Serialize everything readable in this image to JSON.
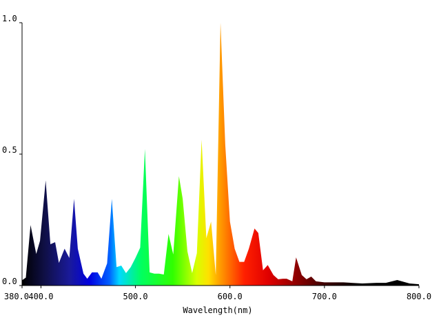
{
  "chart_data": {
    "type": "area",
    "xlabel": "Wavelength(nm)",
    "xlim": [
      380,
      800
    ],
    "ylim": [
      0,
      1
    ],
    "xticks": [
      {
        "value": 380,
        "label": "380.0"
      },
      {
        "value": 400,
        "label": "400.0"
      },
      {
        "value": 500,
        "label": "500.0"
      },
      {
        "value": 600,
        "label": "600.0"
      },
      {
        "value": 700,
        "label": "700.0"
      },
      {
        "value": 800,
        "label": "800.0"
      }
    ],
    "yticks": [
      {
        "value": 0,
        "label": "0.0"
      },
      0.5,
      {
        "value": 1,
        "label": "1.0"
      }
    ],
    "x": [
      380,
      384,
      389,
      395,
      399,
      405,
      410,
      415,
      419,
      425,
      430,
      435,
      439,
      445,
      449,
      454,
      460,
      464,
      470,
      475,
      480,
      485,
      490,
      495,
      500,
      505,
      510,
      515,
      520,
      525,
      530,
      535,
      540,
      546,
      550,
      555,
      560,
      565,
      570,
      575,
      580,
      585,
      590,
      595,
      600,
      605,
      610,
      615,
      620,
      626,
      630,
      635,
      640,
      646,
      651,
      656,
      660,
      666,
      670,
      676,
      681,
      686,
      691,
      700,
      720,
      740,
      755,
      765,
      777,
      790,
      800
    ],
    "values": [
      0.02,
      0.03,
      0.23,
      0.12,
      0.17,
      0.4,
      0.157,
      0.165,
      0.086,
      0.14,
      0.105,
      0.33,
      0.14,
      0.045,
      0.026,
      0.05,
      0.05,
      0.026,
      0.084,
      0.33,
      0.07,
      0.076,
      0.047,
      0.07,
      0.105,
      0.144,
      0.52,
      0.05,
      0.045,
      0.045,
      0.042,
      0.196,
      0.118,
      0.416,
      0.33,
      0.13,
      0.047,
      0.123,
      0.555,
      0.18,
      0.243,
      0.04,
      1.0,
      0.537,
      0.243,
      0.14,
      0.09,
      0.09,
      0.14,
      0.217,
      0.2,
      0.058,
      0.078,
      0.04,
      0.024,
      0.026,
      0.026,
      0.016,
      0.107,
      0.04,
      0.024,
      0.034,
      0.016,
      0.012,
      0.012,
      0.008,
      0.01,
      0.01,
      0.021,
      0.008,
      0.005
    ]
  }
}
